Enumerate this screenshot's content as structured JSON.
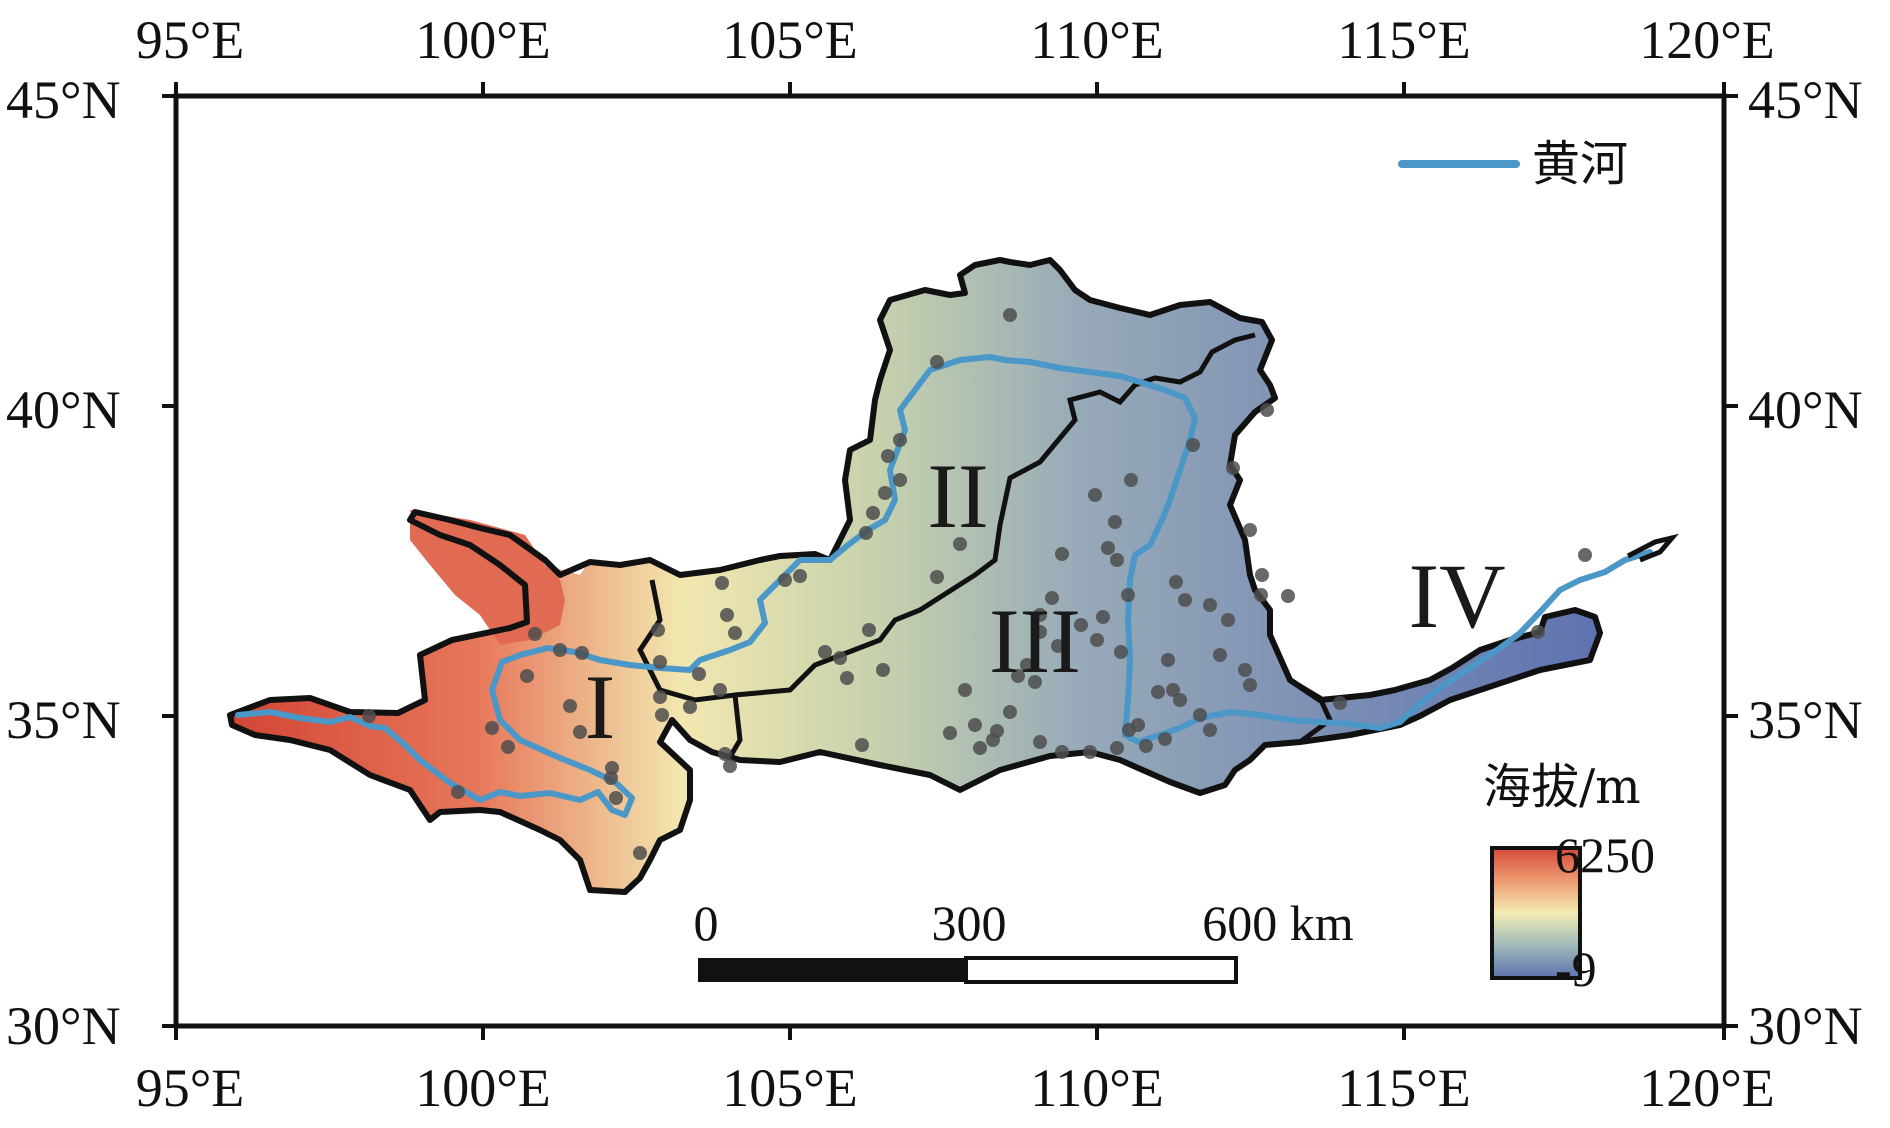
{
  "map": {
    "longitude_ticks": [
      "95°E",
      "100°E",
      "105°E",
      "110°E",
      "115°E",
      "120°E"
    ],
    "latitude_ticks": [
      "45°N",
      "40°N",
      "35°N",
      "30°N"
    ]
  },
  "legend": {
    "river_label": "黄河",
    "river_color": "#4a97c8"
  },
  "regions": [
    "I",
    "II",
    "III",
    "IV"
  ],
  "colorbar": {
    "title": "海拔/m",
    "max_label": "6250",
    "min_label": "-9",
    "colors": [
      "#d64a3a",
      "#ee9a70",
      "#f2ecb4",
      "#9fb9b8",
      "#5e72b0"
    ]
  },
  "scale_bar": {
    "labels": [
      "0",
      "300",
      "600 km"
    ]
  },
  "colors": {
    "station_dot": "#4d4d4d",
    "boundary": "#111111"
  }
}
